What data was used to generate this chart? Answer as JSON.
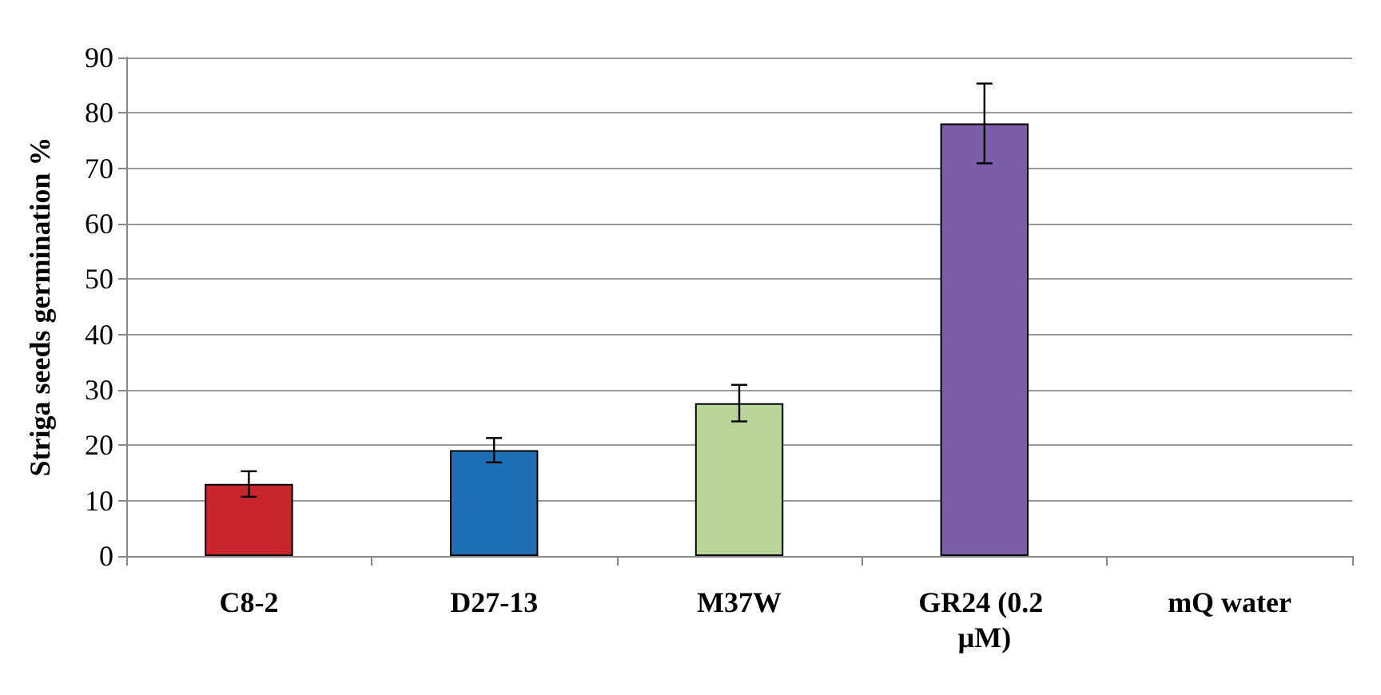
{
  "chart_data": {
    "type": "bar",
    "ylabel": "Striga seeds germination %",
    "categories": [
      "C8-2",
      "D27-13",
      "M37W",
      "GR24 (0.2 µM)",
      "mQ water"
    ],
    "values": [
      13,
      19.1,
      27.6,
      78.1,
      null
    ],
    "colors": [
      "#c9252c",
      "#1f6fb4",
      "#b9d498",
      "#7b5ea7",
      null
    ],
    "errors": [
      2.3,
      2.2,
      3.3,
      7.2,
      null
    ],
    "ylim": [
      0,
      90
    ],
    "yticks": [
      0,
      10,
      20,
      30,
      40,
      50,
      60,
      70,
      80,
      90
    ],
    "grid": "y"
  }
}
